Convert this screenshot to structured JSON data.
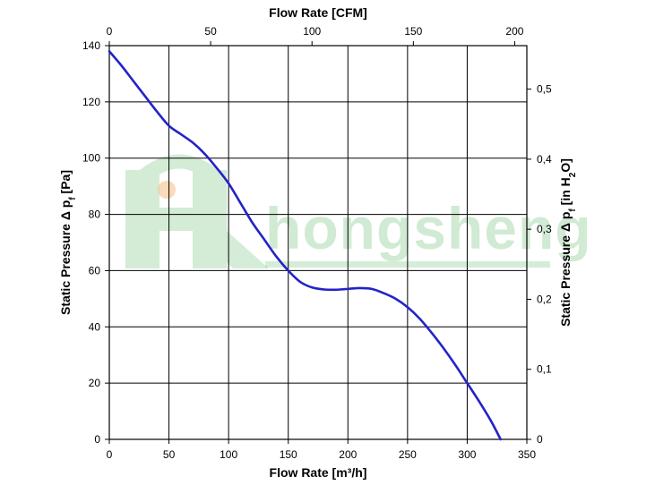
{
  "watermark": {
    "text": "hongsheng",
    "color": "#2ea33a"
  },
  "chart_data": {
    "type": "line",
    "xlabel": "Flow Rate [m³/h]",
    "x2label": "Flow Rate [CFM]",
    "ylabel": "Static Pressure Δ p",
    "ylabel_sub": "f",
    "ylabel_unit": " [Pa]",
    "y2label_pre": "Static Pressure Δ p",
    "y2label_sub": "f",
    "y2label_mid": " [in H",
    "y2label_sub2": "2",
    "y2label_post": "O]",
    "xlim": [
      0,
      350
    ],
    "ylim": [
      0,
      140
    ],
    "x2lim": [
      0,
      205.99
    ],
    "y2lim": [
      0,
      0.5621
    ],
    "x_ticks": [
      "0",
      "50",
      "100",
      "150",
      "200",
      "250",
      "300",
      "350"
    ],
    "x_tick_values": [
      0,
      50,
      100,
      150,
      200,
      250,
      300,
      350
    ],
    "y_ticks": [
      "0",
      "20",
      "40",
      "60",
      "80",
      "100",
      "120",
      "140"
    ],
    "y_tick_values": [
      0,
      20,
      40,
      60,
      80,
      100,
      120,
      140
    ],
    "x2_ticks": [
      "0",
      "50",
      "100",
      "150",
      "200"
    ],
    "x2_tick_values": [
      0,
      50,
      100,
      150,
      200
    ],
    "y2_ticks": [
      "0",
      "0,1",
      "0,2",
      "0,3",
      "0,4",
      "0,5"
    ],
    "y2_tick_values": [
      0,
      0.1,
      0.2,
      0.3,
      0.4,
      0.5
    ],
    "grid": true,
    "series": [
      {
        "color": "#2323c8",
        "x": [
          0,
          10,
          20,
          30,
          40,
          50,
          60,
          70,
          80,
          90,
          100,
          110,
          120,
          130,
          140,
          150,
          160,
          170,
          180,
          190,
          200,
          210,
          220,
          230,
          240,
          250,
          260,
          270,
          280,
          290,
          300,
          310,
          320,
          328
        ],
        "y": [
          138,
          133,
          127.5,
          122,
          116.5,
          111.5,
          108.5,
          105.5,
          101.5,
          96.5,
          91,
          84,
          77,
          71,
          65,
          60,
          56,
          54,
          53.3,
          53.2,
          53.5,
          53.8,
          53.5,
          52,
          50,
          47,
          43,
          38,
          32.5,
          26.5,
          20,
          13.5,
          6.5,
          0
        ]
      }
    ]
  }
}
